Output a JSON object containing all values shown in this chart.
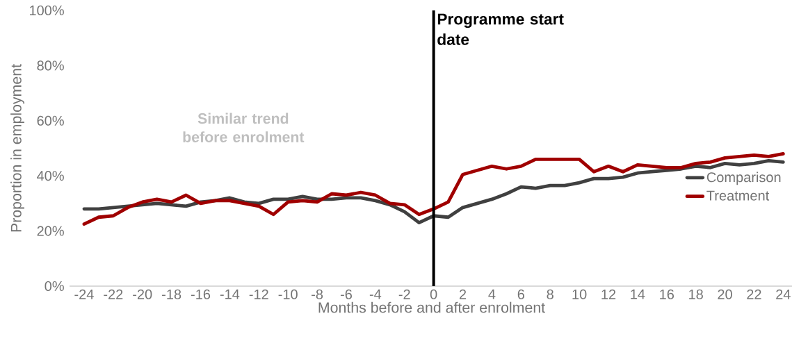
{
  "chart_data": {
    "type": "line",
    "xlabel": "Months before and after enrolment",
    "ylabel": "Proportion in employment",
    "x": [
      -24,
      -23,
      -22,
      -21,
      -20,
      -19,
      -18,
      -17,
      -16,
      -15,
      -14,
      -13,
      -12,
      -11,
      -10,
      -9,
      -8,
      -7,
      -6,
      -5,
      -4,
      -3,
      -2,
      -1,
      0,
      1,
      2,
      3,
      4,
      5,
      6,
      7,
      8,
      9,
      10,
      11,
      12,
      13,
      14,
      15,
      16,
      17,
      18,
      19,
      20,
      21,
      22,
      23,
      24
    ],
    "series": [
      {
        "name": "Comparison",
        "color": "#404040",
        "values": [
          28,
          28,
          28.5,
          29,
          29.5,
          30,
          29.5,
          29,
          30.5,
          31,
          32,
          30.5,
          30,
          31.5,
          31.5,
          32.5,
          31.5,
          31.5,
          32,
          32,
          31,
          29.5,
          27,
          23,
          25.5,
          25,
          28.5,
          30,
          31.5,
          33.5,
          36,
          35.5,
          36.5,
          36.5,
          37.5,
          39,
          39,
          39.5,
          41,
          41.5,
          42,
          42.5,
          43.5,
          43,
          44.5,
          44,
          44.5,
          45.5,
          45
        ]
      },
      {
        "name": "Treatment",
        "color": "#a00000",
        "values": [
          22.5,
          25,
          25.5,
          28.5,
          30.5,
          31.5,
          30.5,
          33,
          30,
          31,
          31,
          30,
          29,
          26,
          30.5,
          31,
          30.5,
          33.5,
          33,
          34,
          33,
          30,
          29.5,
          26,
          28,
          30.5,
          40.5,
          42,
          43.5,
          42.5,
          43.5,
          46,
          46,
          46,
          46,
          41.5,
          43.5,
          41.5,
          44,
          43.5,
          43,
          43,
          44.5,
          45,
          46.5,
          47,
          47.5,
          47,
          48
        ]
      }
    ],
    "xlim": [
      -25,
      24.7
    ],
    "xticks": [
      -24,
      -22,
      -20,
      -18,
      -16,
      -14,
      -12,
      -10,
      -8,
      -6,
      -4,
      -2,
      0,
      2,
      4,
      6,
      8,
      10,
      12,
      14,
      16,
      18,
      20,
      22,
      24
    ],
    "ylim": [
      0,
      100
    ],
    "yticks": [
      {
        "value": 0,
        "label": "0%"
      },
      {
        "value": 20,
        "label": "20%"
      },
      {
        "value": 40,
        "label": "40%"
      },
      {
        "value": 60,
        "label": "60%"
      },
      {
        "value": 80,
        "label": "80%"
      },
      {
        "value": 100,
        "label": "100%"
      }
    ],
    "ref_lines": [
      {
        "axis": "x",
        "value": 0,
        "label": "Programme start date",
        "color": "#000000"
      }
    ],
    "annotations": [
      "Similar trend before enrolment"
    ],
    "legend": "right",
    "grid": false,
    "marker": "none",
    "line_style": "solid"
  }
}
